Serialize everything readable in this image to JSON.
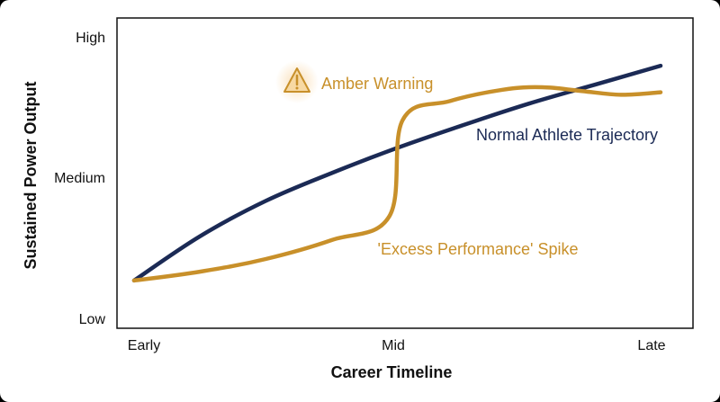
{
  "chart_data": {
    "type": "line",
    "xlabel": "Career Timeline",
    "ylabel": "Sustained Power Output",
    "x_ticks": [
      "Early",
      "Mid",
      "Late"
    ],
    "y_ticks": [
      "Low",
      "Medium",
      "High"
    ],
    "xlim": [
      0,
      2
    ],
    "ylim": [
      0,
      2
    ],
    "grid": false,
    "series": [
      {
        "name": "Normal Athlete Trajectory",
        "color": "#1b2a55",
        "points": [
          [
            0,
            0.15
          ],
          [
            0.25,
            0.5
          ],
          [
            0.5,
            0.78
          ],
          [
            0.75,
            1.0
          ],
          [
            1.0,
            1.2
          ],
          [
            1.25,
            1.38
          ],
          [
            1.5,
            1.55
          ],
          [
            1.75,
            1.7
          ],
          [
            2.0,
            1.85
          ]
        ]
      },
      {
        "name": "'Excess Performance' Spike",
        "color": "#c8902a",
        "points": [
          [
            0,
            0.15
          ],
          [
            0.25,
            0.22
          ],
          [
            0.5,
            0.32
          ],
          [
            0.75,
            0.47
          ],
          [
            0.97,
            0.66
          ],
          [
            1.02,
            1.42
          ],
          [
            1.2,
            1.57
          ],
          [
            1.4,
            1.66
          ],
          [
            1.55,
            1.68
          ],
          [
            1.7,
            1.65
          ],
          [
            1.85,
            1.62
          ],
          [
            2.0,
            1.64
          ]
        ]
      }
    ],
    "annotations": [
      {
        "text": "Amber Warning",
        "icon": "warning-triangle-icon",
        "color": "#c8902a"
      }
    ]
  }
}
